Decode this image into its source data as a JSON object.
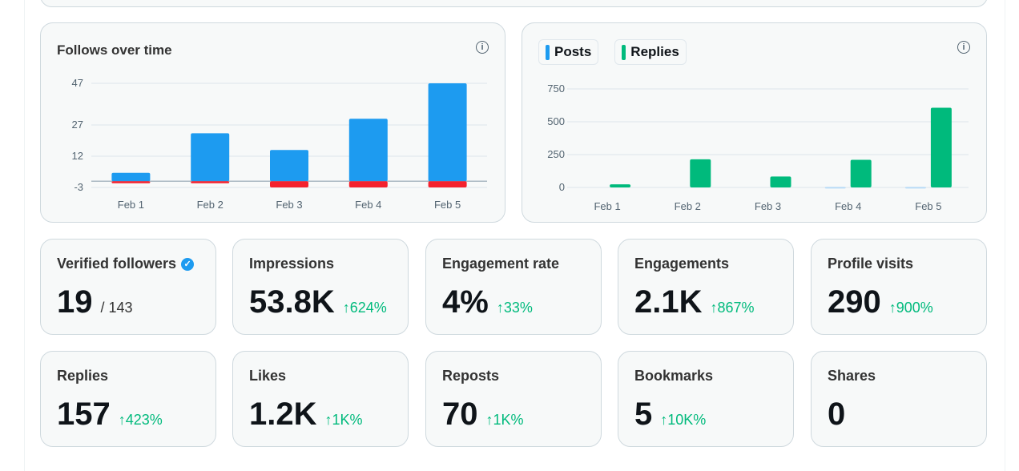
{
  "colors": {
    "blue": "#1d9bf0",
    "red": "#f4212e",
    "green": "#00ba7c",
    "light_blue": "#b9dcf7"
  },
  "chart_data": [
    {
      "type": "bar",
      "title": "Follows over time",
      "categories": [
        "Feb 1",
        "Feb 2",
        "Feb 3",
        "Feb 4",
        "Feb 5"
      ],
      "series": [
        {
          "values": [
            4,
            23,
            15,
            30,
            47
          ],
          "color": "#1d9bf0"
        },
        {
          "values": [
            -1,
            -1,
            -3,
            -3,
            -3
          ],
          "color": "#f4212e"
        }
      ],
      "yticks": [
        47,
        27,
        12,
        -3
      ],
      "ylim": [
        -3,
        47
      ],
      "grid": true,
      "stacked": true
    },
    {
      "type": "bar",
      "categories": [
        "Feb 1",
        "Feb 2",
        "Feb 3",
        "Feb 4",
        "Feb 5"
      ],
      "series": [
        {
          "name": "Posts",
          "values": [
            0,
            0,
            0,
            4,
            4
          ],
          "color": "#1d9bf0"
        },
        {
          "name": "Replies",
          "values": [
            24,
            214,
            83,
            210,
            607
          ],
          "color": "#00ba7c"
        }
      ],
      "yticks": [
        750,
        500,
        250,
        0
      ],
      "ylim": [
        0,
        750
      ],
      "grid": true,
      "legend": "top-left"
    }
  ],
  "stats": [
    {
      "label": "Verified followers",
      "value": "19",
      "sub": "/ 143",
      "verified": true
    },
    {
      "label": "Impressions",
      "value": "53.8K",
      "change": "624%"
    },
    {
      "label": "Engagement rate",
      "value": "4%",
      "change": "33%"
    },
    {
      "label": "Engagements",
      "value": "2.1K",
      "change": "867%"
    },
    {
      "label": "Profile visits",
      "value": "290",
      "change": "900%"
    },
    {
      "label": "Replies",
      "value": "157",
      "change": "423%"
    },
    {
      "label": "Likes",
      "value": "1.2K",
      "change": "1K%"
    },
    {
      "label": "Reposts",
      "value": "70",
      "change": "1K%"
    },
    {
      "label": "Bookmarks",
      "value": "5",
      "change": "10K%"
    },
    {
      "label": "Shares",
      "value": "0"
    }
  ]
}
